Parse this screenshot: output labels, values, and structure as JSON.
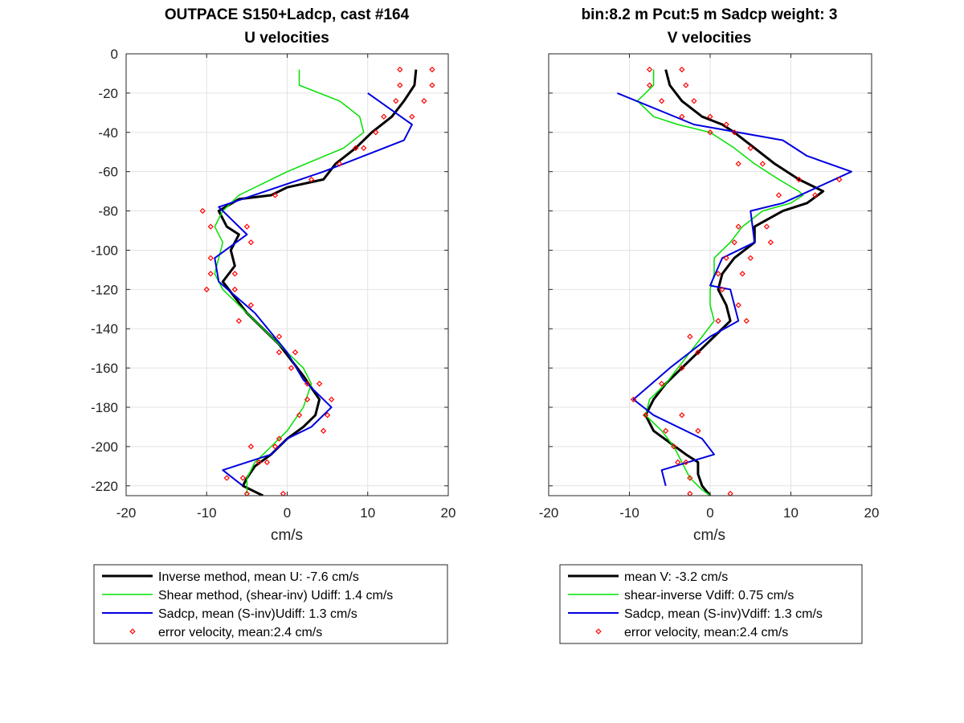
{
  "chart_data": [
    {
      "type": "line",
      "title_line1": "OUTPACE S150+Ladcp, cast #164",
      "title_line2": "U velocities",
      "xlabel": "cm/s",
      "ylabel": "",
      "xlim": [
        -20,
        20
      ],
      "ylim": [
        -225,
        0
      ],
      "xticks": [
        -20,
        -10,
        0,
        10,
        20
      ],
      "yticks": [
        0,
        -20,
        -40,
        -60,
        -80,
        -100,
        -120,
        -140,
        -160,
        -180,
        -200,
        -220
      ],
      "grid": true,
      "legend_position": "below",
      "series": [
        {
          "name": "Inverse method, mean U:  -7.6 cm/s",
          "color": "#000000",
          "width": 3,
          "x": [
            16,
            15.8,
            14.5,
            13,
            10.5,
            8.5,
            6,
            4.5,
            0,
            -2,
            -6,
            -8.5,
            -7.5,
            -6,
            -7,
            -6.5,
            -8,
            -6.5,
            -5,
            -3,
            -1,
            0.5,
            2,
            3,
            4,
            3.5,
            2,
            0,
            -2,
            -4,
            -5,
            -5.5,
            -3
          ],
          "y": [
            -8,
            -16,
            -24,
            -32,
            -40,
            -48,
            -56,
            -64,
            -68,
            -72,
            -74,
            -80,
            -88,
            -92,
            -100,
            -108,
            -116,
            -124,
            -132,
            -140,
            -148,
            -156,
            -164,
            -170,
            -176,
            -184,
            -190,
            -196,
            -204,
            -210,
            -216,
            -220,
            -225
          ]
        },
        {
          "name": "Shear method, (shear-inv)  Udiff:  1.4 cm/s",
          "color": "#00e000",
          "width": 1.5,
          "x": [
            1.5,
            1.5,
            6.5,
            9.0,
            9.5,
            7.0,
            0.0,
            -6.0,
            -8.0,
            -9.0,
            -8.0,
            -8.5,
            -9.0,
            -8.0,
            -6.0,
            -4.0,
            -2.0,
            0.0,
            2.0,
            3.0,
            2.0,
            0.0,
            -2.0,
            -4.0,
            -5.0,
            -5.0
          ],
          "y": [
            -8,
            -16,
            -24,
            -32,
            -40,
            -48,
            -60,
            -72,
            -80,
            -88,
            -96,
            -104,
            -112,
            -120,
            -128,
            -136,
            -144,
            -152,
            -160,
            -168,
            -180,
            -192,
            -200,
            -208,
            -216,
            -224
          ]
        },
        {
          "name": "Sadcp, mean (S-inv)Udiff: 1.3 cm/s",
          "color": "#0000e0",
          "width": 2,
          "x": [
            10,
            15.5,
            14.5,
            4.5,
            -8.5,
            -5,
            -9,
            -8.5,
            -4,
            0,
            2,
            4,
            5.5,
            3,
            0,
            -2,
            -8,
            -5.5
          ],
          "y": [
            -20,
            -36,
            -44,
            -60,
            -78,
            -92,
            -104,
            -116,
            -132,
            -152,
            -166,
            -174,
            -180,
            -190,
            -196,
            -204,
            -212,
            -220
          ]
        },
        {
          "name": "error velocity, mean:2.4 cm/s",
          "color": "#ff0000",
          "marker": "diamond",
          "x": [
            14,
            18,
            14,
            18,
            13.5,
            17,
            12,
            15.5,
            11,
            9.5,
            8.5,
            6.5,
            3,
            -1.5,
            -10.5,
            -9.5,
            -5,
            -4.5,
            -9.5,
            -9.5,
            -6.5,
            -10,
            -6.5,
            -4.5,
            -6,
            -1,
            -1,
            1,
            0.5,
            2.5,
            4,
            2.5,
            5.5,
            1.5,
            5,
            4.5,
            -1,
            -4.5,
            -1.5,
            -3.5,
            -2.5,
            -7.5,
            -5.5,
            -5,
            -0.5
          ],
          "y": [
            -8,
            -8,
            -16,
            -16,
            -24,
            -24,
            -32,
            -32,
            -40,
            -48,
            -48,
            -56,
            -64,
            -72,
            -80,
            -88,
            -88,
            -96,
            -104,
            -112,
            -112,
            -120,
            -120,
            -128,
            -136,
            -144,
            -152,
            -152,
            -160,
            -168,
            -168,
            -176,
            -176,
            -184,
            -184,
            -192,
            -196,
            -200,
            -200,
            -208,
            -208,
            -216,
            -216,
            -224,
            -224
          ]
        }
      ]
    },
    {
      "type": "line",
      "title_line1": "bin:8.2 m  Pcut:5 m  Sadcp weight: 3",
      "title_line2": "V velocities",
      "xlabel": "cm/s",
      "ylabel": "",
      "xlim": [
        -20,
        20
      ],
      "ylim": [
        -225,
        0
      ],
      "xticks": [
        -20,
        -10,
        0,
        10,
        20
      ],
      "yticks": [],
      "grid": true,
      "legend_position": "below",
      "series": [
        {
          "name": "mean V:  -3.2 cm/s",
          "color": "#000000",
          "width": 3,
          "x": [
            -5.5,
            -5.0,
            -3.5,
            -1.0,
            1.5,
            3.0,
            5.5,
            8.0,
            11.0,
            14.0,
            12.0,
            9.0,
            5.5,
            5.5,
            3.0,
            1.5,
            1.0,
            2.0,
            2.5,
            0.5,
            -1.5,
            -3.5,
            -5.5,
            -7.0,
            -8.0,
            -7.0,
            -5.0,
            -3.0,
            -1.5,
            -1.5,
            -1.0,
            0.0
          ],
          "y": [
            -8,
            -16,
            -24,
            -32,
            -36,
            -40,
            -48,
            -56,
            -64,
            -70,
            -76,
            -80,
            -88,
            -96,
            -104,
            -112,
            -120,
            -128,
            -136,
            -144,
            -152,
            -160,
            -168,
            -176,
            -184,
            -192,
            -198,
            -204,
            -208,
            -214,
            -220,
            -225
          ]
        },
        {
          "name": "shear-inverse Vdiff:  0.75 cm/s",
          "color": "#00e000",
          "width": 1.5,
          "x": [
            -7,
            -7,
            -9,
            -7,
            -4,
            0,
            3,
            5.5,
            8.5,
            11,
            11.5,
            10,
            6.5,
            4,
            2.5,
            0.5,
            0.5,
            0,
            0,
            0.5,
            -1,
            -2.5,
            -4,
            -5.5,
            -7.5,
            -8,
            -6,
            -4.5,
            -3.5,
            -2.5,
            -1,
            0
          ],
          "y": [
            -8,
            -16,
            -24,
            -32,
            -36,
            -40,
            -48,
            -56,
            -64,
            -70,
            -72,
            -76,
            -80,
            -88,
            -96,
            -104,
            -112,
            -120,
            -128,
            -136,
            -144,
            -152,
            -160,
            -168,
            -176,
            -184,
            -192,
            -200,
            -208,
            -216,
            -222,
            -225
          ]
        },
        {
          "name": "Sadcp, mean (S-inv)Vdiff: 1.3 cm/s",
          "color": "#0000e0",
          "width": 2,
          "x": [
            -11.5,
            -2,
            9,
            12,
            17.5,
            9,
            5,
            5.5,
            1.5,
            0,
            2.5,
            3.5,
            0,
            -5,
            -9.5,
            -7,
            -1,
            0.5,
            -6,
            -5.5
          ],
          "y": [
            -20,
            -36,
            -44,
            -52,
            -60,
            -76,
            -80,
            -96,
            -104,
            -118,
            -120,
            -136,
            -144,
            -160,
            -176,
            -184,
            -196,
            -204,
            -212,
            -220
          ]
        },
        {
          "name": "error velocity, mean:2.4 cm/s",
          "color": "#ff0000",
          "marker": "diamond",
          "x": [
            -7.5,
            -3.5,
            -7.5,
            -3,
            -6,
            -2,
            -3.5,
            0,
            2,
            0,
            3,
            5,
            3.5,
            6.5,
            11,
            8.5,
            13,
            16,
            3.5,
            7,
            3,
            7.5,
            2,
            5,
            1,
            4,
            1.5,
            3.5,
            4.5,
            1,
            -2.5,
            -1.5,
            -3.5,
            -6,
            -9.5,
            -8,
            -3.5,
            -5.5,
            -1.5,
            -4.5,
            -3,
            -4,
            -2.5,
            2.5,
            -2.5
          ],
          "y": [
            -8,
            -8,
            -16,
            -16,
            -24,
            -24,
            -32,
            -32,
            -36,
            -40,
            -40,
            -48,
            -56,
            -56,
            -64,
            -72,
            -72,
            -64,
            -88,
            -88,
            -96,
            -96,
            -104,
            -104,
            -112,
            -112,
            -120,
            -128,
            -136,
            -136,
            -144,
            -152,
            -160,
            -168,
            -176,
            -184,
            -184,
            -192,
            -192,
            -200,
            -208,
            -208,
            -216,
            -224,
            -224
          ]
        }
      ]
    }
  ]
}
